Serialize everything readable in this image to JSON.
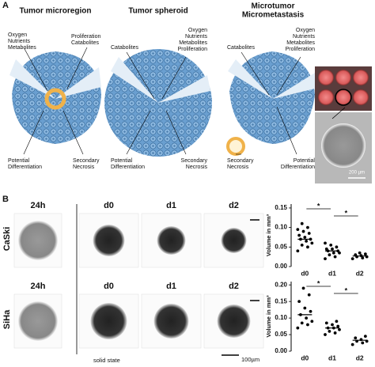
{
  "panel_a": {
    "label": "A",
    "models": [
      {
        "title": [
          "Tumor microregion"
        ],
        "labels": [
          [
            "Oxygen",
            "Nutrients",
            "Metabolites"
          ],
          [
            "Proliferation",
            "Catabolites"
          ],
          [
            "Potential",
            "Differentiation"
          ],
          [
            "Secondary",
            "Necrosis"
          ]
        ]
      },
      {
        "title": [
          "Tumor spheroid"
        ],
        "labels": [
          [
            "Catabolites"
          ],
          [
            "Oxygen",
            "Nutrients",
            "Metabolites",
            "Proliferation"
          ],
          [
            "Potential",
            "Differentiation"
          ],
          [
            "Secondary",
            "Necrosis"
          ]
        ]
      },
      {
        "title": [
          "Microtumor",
          "Micrometastasis"
        ],
        "labels": [
          [
            "Catabolites"
          ],
          [
            "Oxygen",
            "Nutrients",
            "Metabolites",
            "Proliferation"
          ],
          [
            "Secondary",
            "Necrosis"
          ],
          [
            "Potential",
            "Differentiation"
          ]
        ]
      }
    ],
    "scale_bar": "200 µm"
  },
  "panel_b": {
    "label": "B",
    "rows": [
      "CaSki",
      "SiHa"
    ],
    "columns": [
      "24h",
      "d0",
      "d1",
      "d2"
    ],
    "footer": "solid state",
    "scale_bar": "100µm",
    "plots": [
      {
        "y_label": "Volume in mm³",
        "ylim": [
          0,
          0.16
        ],
        "yticks": [
          {
            "value": 0,
            "label": "0.00"
          },
          {
            "value": 0.05,
            "label": "0.05"
          },
          {
            "value": 0.1,
            "label": "0.10"
          },
          {
            "value": 0.15,
            "label": "0.15"
          }
        ],
        "categories": [
          "d0",
          "d1",
          "d2"
        ],
        "points": [
          [
            0.04,
            0.05,
            0.055,
            0.06,
            0.065,
            0.07,
            0.07,
            0.075,
            0.08,
            0.085,
            0.09,
            0.095,
            0.1,
            0.11
          ],
          [
            0.02,
            0.025,
            0.03,
            0.035,
            0.035,
            0.04,
            0.04,
            0.045,
            0.045,
            0.05,
            0.055,
            0.06
          ],
          [
            0.02,
            0.022,
            0.025,
            0.025,
            0.028,
            0.03,
            0.032,
            0.035
          ]
        ],
        "means": [
          0.07,
          0.04,
          0.027
        ],
        "significance": [
          "*",
          "*"
        ]
      },
      {
        "y_label": "Volume in mm³",
        "ylim": [
          0,
          0.21
        ],
        "yticks": [
          {
            "value": 0,
            "label": "0.00"
          },
          {
            "value": 0.05,
            "label": "0.05"
          },
          {
            "value": 0.1,
            "label": "0.10"
          },
          {
            "value": 0.15,
            "label": "0.15"
          },
          {
            "value": 0.2,
            "label": "0.20"
          }
        ],
        "categories": [
          "d0",
          "d1",
          "d2"
        ],
        "points": [
          [
            0.07,
            0.08,
            0.085,
            0.09,
            0.1,
            0.11,
            0.12,
            0.13,
            0.15,
            0.17,
            0.19
          ],
          [
            0.05,
            0.055,
            0.06,
            0.065,
            0.07,
            0.07,
            0.075,
            0.08,
            0.085,
            0.09
          ],
          [
            0.02,
            0.025,
            0.03,
            0.03,
            0.035,
            0.04,
            0.045
          ]
        ],
        "means": [
          0.11,
          0.07,
          0.033
        ],
        "significance": [
          "*",
          "*"
        ]
      }
    ]
  }
}
